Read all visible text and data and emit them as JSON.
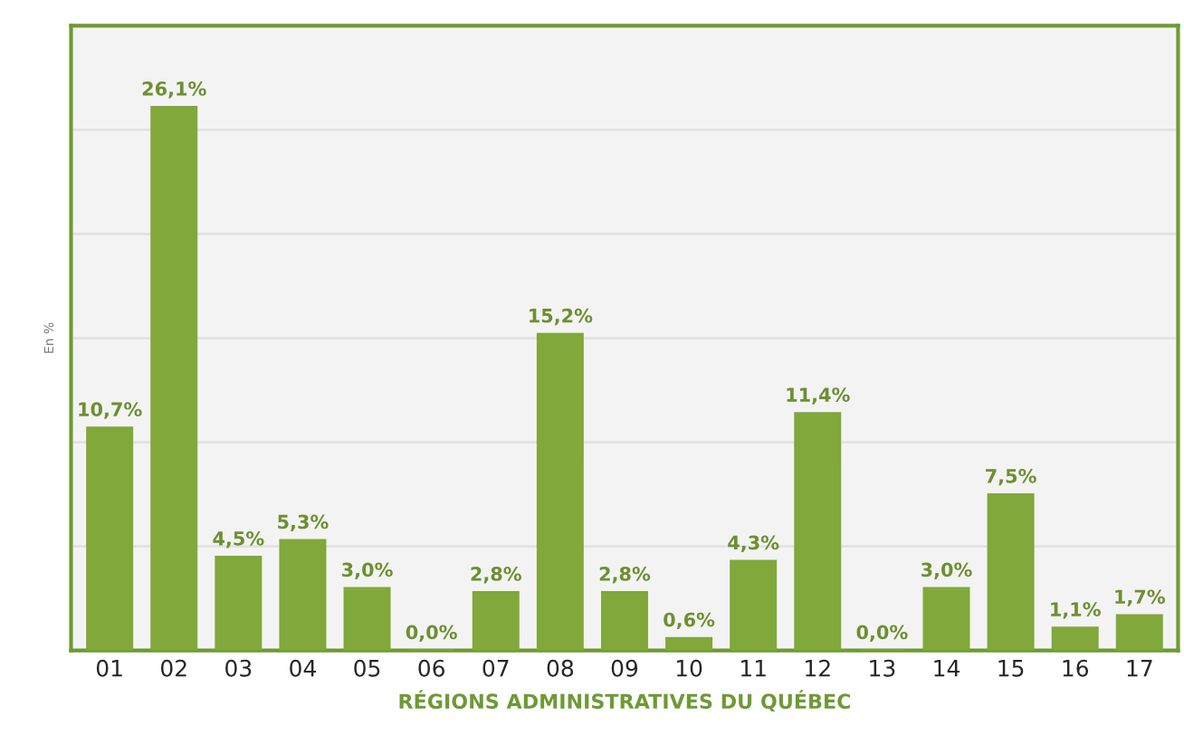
{
  "chart_data": {
    "type": "bar",
    "categories": [
      "01",
      "02",
      "03",
      "04",
      "05",
      "06",
      "07",
      "08",
      "09",
      "10",
      "11",
      "12",
      "13",
      "14",
      "15",
      "16",
      "17"
    ],
    "values": [
      10.7,
      26.1,
      4.5,
      5.3,
      3.0,
      0.0,
      2.8,
      15.2,
      2.8,
      0.6,
      4.3,
      11.4,
      0.0,
      3.0,
      7.5,
      1.1,
      1.7
    ],
    "value_labels": [
      "10,7%",
      "26,1%",
      "4,5%",
      "5,3%",
      "3,0%",
      "0,0%",
      "2,8%",
      "15,2%",
      "2,8%",
      "0,6%",
      "4,3%",
      "11,4%",
      "0,0%",
      "3,0%",
      "7,5%",
      "1,1%",
      "1,7%"
    ],
    "color": "#80a83a",
    "ylabel": "En %",
    "xlabel": "RÉGIONS ADMINISTRATIVES DU QUÉBEC",
    "ylim": [
      0,
      30
    ],
    "yticks": [
      {
        "value": 0,
        "label": null
      },
      {
        "value": 5,
        "label": null
      },
      {
        "value": 10,
        "label": null
      },
      {
        "value": 15,
        "label": null
      },
      {
        "value": 20,
        "label": null
      },
      {
        "value": 25,
        "label": null
      },
      {
        "value": 30,
        "label": null
      }
    ],
    "grid": "y",
    "tick_labels": "x"
  }
}
